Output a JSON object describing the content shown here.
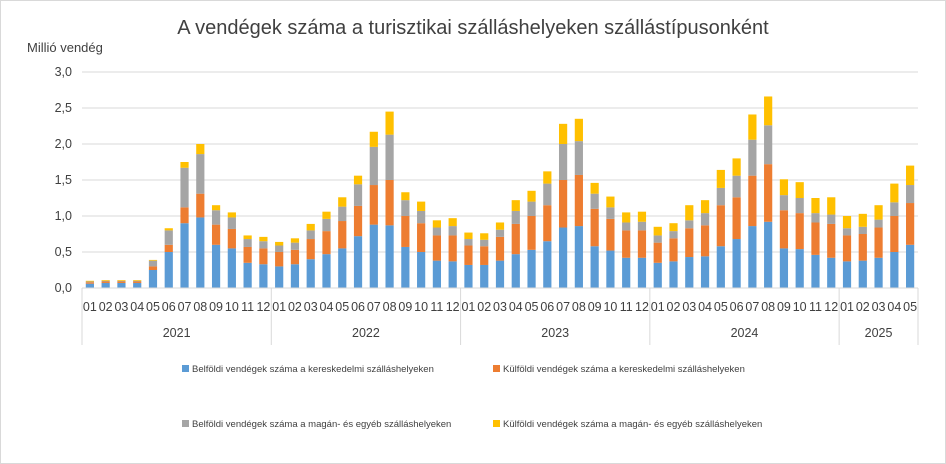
{
  "chart_data": {
    "type": "bar",
    "stacked": true,
    "title": "A vendégek száma a turisztikai szálláshelyeken szállástípusonként",
    "ylabel": "Millió vendég",
    "xlabel": "",
    "ylim": [
      0,
      3.0
    ],
    "y_ticks": [
      "0,0",
      "0,5",
      "1,0",
      "1,5",
      "2,0",
      "2,5",
      "3,0"
    ],
    "grid": true,
    "legend_position": "bottom",
    "years": [
      {
        "label": "2021",
        "months": [
          "01",
          "02",
          "03",
          "04",
          "05",
          "06",
          "07",
          "08",
          "09",
          "10",
          "11",
          "12"
        ]
      },
      {
        "label": "2022",
        "months": [
          "01",
          "02",
          "03",
          "04",
          "05",
          "06",
          "07",
          "08",
          "09",
          "10",
          "11",
          "12"
        ]
      },
      {
        "label": "2023",
        "months": [
          "01",
          "02",
          "03",
          "04",
          "05",
          "06",
          "07",
          "08",
          "09",
          "10",
          "11",
          "12"
        ]
      },
      {
        "label": "2024",
        "months": [
          "01",
          "02",
          "03",
          "04",
          "05",
          "06",
          "07",
          "08",
          "09",
          "10",
          "11",
          "12"
        ]
      },
      {
        "label": "2025",
        "months": [
          "01",
          "02",
          "03",
          "04",
          "05"
        ]
      }
    ],
    "series": [
      {
        "name": "Belföldi vendégek száma a kereskedelmi szálláshelyeken",
        "color": "#5b9bd5",
        "values": [
          0.06,
          0.07,
          0.07,
          0.07,
          0.25,
          0.5,
          0.9,
          0.98,
          0.6,
          0.55,
          0.35,
          0.33,
          0.3,
          0.33,
          0.4,
          0.47,
          0.55,
          0.72,
          0.88,
          0.87,
          0.57,
          0.5,
          0.38,
          0.37,
          0.32,
          0.32,
          0.38,
          0.47,
          0.53,
          0.65,
          0.84,
          0.86,
          0.58,
          0.52,
          0.42,
          0.42,
          0.35,
          0.37,
          0.43,
          0.44,
          0.58,
          0.68,
          0.86,
          0.92,
          0.55,
          0.54,
          0.46,
          0.42,
          0.37,
          0.38,
          0.42,
          0.5,
          0.6
        ]
      },
      {
        "name": "Külföldi vendégek száma a kereskedelmi szálláshelyeken",
        "color": "#ed7d31",
        "values": [
          0.02,
          0.02,
          0.02,
          0.02,
          0.05,
          0.1,
          0.22,
          0.33,
          0.28,
          0.27,
          0.22,
          0.22,
          0.2,
          0.2,
          0.28,
          0.32,
          0.38,
          0.42,
          0.55,
          0.63,
          0.43,
          0.4,
          0.35,
          0.36,
          0.27,
          0.26,
          0.33,
          0.42,
          0.47,
          0.5,
          0.66,
          0.71,
          0.52,
          0.44,
          0.38,
          0.38,
          0.28,
          0.32,
          0.4,
          0.43,
          0.57,
          0.58,
          0.7,
          0.8,
          0.53,
          0.5,
          0.45,
          0.47,
          0.36,
          0.37,
          0.42,
          0.5,
          0.58
        ]
      },
      {
        "name": "Belföldi vendégek száma a magán- és egyéb szálláshelyeken",
        "color": "#a5a5a5",
        "values": [
          0.01,
          0.01,
          0.01,
          0.01,
          0.08,
          0.2,
          0.55,
          0.55,
          0.2,
          0.16,
          0.11,
          0.1,
          0.09,
          0.1,
          0.12,
          0.17,
          0.2,
          0.3,
          0.53,
          0.63,
          0.22,
          0.17,
          0.11,
          0.13,
          0.09,
          0.09,
          0.1,
          0.18,
          0.2,
          0.3,
          0.5,
          0.47,
          0.21,
          0.16,
          0.11,
          0.12,
          0.1,
          0.1,
          0.11,
          0.17,
          0.24,
          0.3,
          0.5,
          0.54,
          0.21,
          0.21,
          0.13,
          0.13,
          0.1,
          0.1,
          0.11,
          0.19,
          0.25
        ]
      },
      {
        "name": "Külföldi vendégek száma a magán- és egyéb szálláshelyeken",
        "color": "#ffc000",
        "values": [
          0.01,
          0.01,
          0.01,
          0.01,
          0.01,
          0.03,
          0.08,
          0.14,
          0.07,
          0.07,
          0.05,
          0.06,
          0.05,
          0.06,
          0.09,
          0.1,
          0.13,
          0.12,
          0.21,
          0.32,
          0.11,
          0.13,
          0.1,
          0.11,
          0.09,
          0.09,
          0.1,
          0.15,
          0.15,
          0.17,
          0.28,
          0.31,
          0.15,
          0.15,
          0.14,
          0.14,
          0.12,
          0.11,
          0.21,
          0.18,
          0.25,
          0.24,
          0.35,
          0.4,
          0.22,
          0.22,
          0.21,
          0.24,
          0.17,
          0.18,
          0.2,
          0.26,
          0.27
        ]
      }
    ]
  }
}
